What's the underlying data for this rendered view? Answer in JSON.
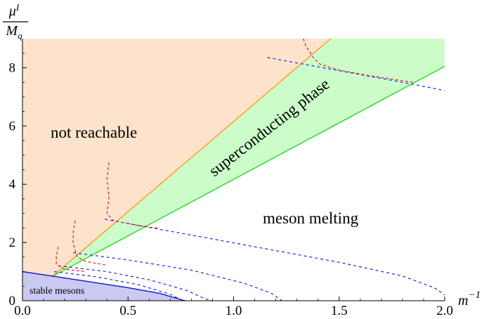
{
  "chart_data": {
    "type": "line",
    "xlabel": "m^{-1}",
    "ylabel": "μ^I / M_q",
    "xlim": [
      0.0,
      2.0
    ],
    "ylim": [
      0,
      9
    ],
    "x_ticks": [
      "0.0",
      "0.5",
      "1.0",
      "1.5",
      "2.0"
    ],
    "y_ticks": [
      "0",
      "2",
      "4",
      "6",
      "8"
    ],
    "grid": false,
    "colors": {
      "not_reachable_fill": "#fde3cc",
      "superconducting_fill": "#ccfcca",
      "stable_fill": "#c9c9f2",
      "boundary_orange": "#ff9a1a",
      "boundary_green": "#22dd22",
      "boundary_blue": "#1010cc",
      "dashed_blue": "#2020ee",
      "dashed_red": "#e02020"
    },
    "regions": {
      "not_reachable_label": "not reachable",
      "superconducting_label": "superconducting phase",
      "meson_melting_label": "meson melting",
      "stable_mesons_label": "stable mesons"
    },
    "boundaries": {
      "orange_line": [
        [
          0.14,
          0.83
        ],
        [
          1.46,
          9.0
        ]
      ],
      "green_line": [
        [
          0.14,
          0.83
        ],
        [
          2.0,
          8.05
        ]
      ],
      "stable_mesons_boundary": [
        [
          0.0,
          1.0
        ],
        [
          0.14,
          0.85
        ],
        [
          0.3,
          0.67
        ],
        [
          0.5,
          0.45
        ],
        [
          0.65,
          0.25
        ],
        [
          0.77,
          0.0
        ]
      ]
    },
    "dashed_blue_curves": [
      [
        [
          0.39,
          2.8
        ],
        [
          0.6,
          2.52
        ],
        [
          0.9,
          2.12
        ],
        [
          1.2,
          1.72
        ],
        [
          1.5,
          1.32
        ],
        [
          1.8,
          0.85
        ],
        [
          1.95,
          0.45
        ],
        [
          2.0,
          0.2
        ]
      ],
      [
        [
          0.24,
          1.65
        ],
        [
          0.5,
          1.4
        ],
        [
          0.8,
          1.05
        ],
        [
          1.05,
          0.6
        ],
        [
          1.18,
          0.25
        ],
        [
          1.23,
          0.0
        ]
      ],
      [
        [
          0.17,
          1.2
        ],
        [
          0.4,
          1.0
        ],
        [
          0.6,
          0.72
        ],
        [
          0.78,
          0.35
        ],
        [
          0.86,
          0.08
        ],
        [
          0.9,
          0.0
        ]
      ],
      [
        [
          0.15,
          1.0
        ],
        [
          0.35,
          0.82
        ],
        [
          0.55,
          0.55
        ],
        [
          0.7,
          0.22
        ],
        [
          0.76,
          0.0
        ]
      ],
      [
        [
          1.16,
          8.35
        ],
        [
          1.5,
          7.9
        ],
        [
          1.8,
          7.5
        ],
        [
          2.0,
          7.22
        ]
      ]
    ],
    "dashed_red_curves": [
      [
        [
          1.33,
          9.0
        ],
        [
          1.34,
          8.78
        ],
        [
          1.36,
          8.55
        ],
        [
          1.38,
          8.32
        ],
        [
          1.41,
          8.12
        ],
        [
          1.5,
          7.92
        ],
        [
          1.65,
          7.72
        ],
        [
          1.85,
          7.5
        ]
      ],
      [
        [
          0.41,
          4.75
        ],
        [
          0.4,
          4.2
        ],
        [
          0.41,
          3.55
        ],
        [
          0.4,
          3.0
        ],
        [
          0.43,
          2.75
        ],
        [
          0.55,
          2.58
        ],
        [
          0.65,
          2.48
        ]
      ],
      [
        [
          0.25,
          2.75
        ],
        [
          0.24,
          2.35
        ],
        [
          0.24,
          1.95
        ],
        [
          0.26,
          1.5
        ],
        [
          0.3,
          1.35
        ],
        [
          0.4,
          1.22
        ]
      ],
      [
        [
          0.17,
          1.85
        ],
        [
          0.16,
          1.55
        ],
        [
          0.16,
          1.25
        ],
        [
          0.2,
          1.08
        ],
        [
          0.3,
          1.0
        ]
      ]
    ]
  }
}
